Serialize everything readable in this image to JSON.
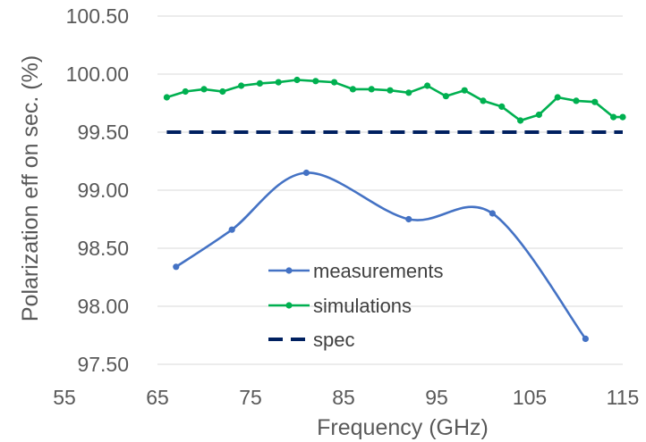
{
  "chart_data": {
    "type": "line",
    "xlabel": "Frequency (GHz)",
    "ylabel": "Polarization eff on sec. (%)",
    "xlim": [
      55,
      115
    ],
    "ylim": [
      97.5,
      100.5
    ],
    "x_ticks": [
      "55",
      "65",
      "75",
      "85",
      "95",
      "105",
      "115"
    ],
    "y_ticks": [
      "97.50",
      "98.00",
      "98.50",
      "99.00",
      "99.50",
      "100.00",
      "100.50"
    ],
    "grid": "horizontal",
    "legend": "center-bottom",
    "series": [
      {
        "name": "measurements",
        "color": "#4472c4",
        "smooth": true,
        "marker": "circle",
        "x": [
          67,
          73,
          81,
          92,
          101,
          111
        ],
        "y": [
          98.34,
          98.66,
          99.15,
          98.75,
          98.8,
          97.72
        ]
      },
      {
        "name": "simulations",
        "color": "#00b050",
        "smooth": false,
        "marker": "circle",
        "x": [
          66,
          68,
          70,
          72,
          74,
          76,
          78,
          80,
          82,
          84,
          86,
          88,
          90,
          92,
          94,
          96,
          98,
          100,
          102,
          104,
          106,
          108,
          110,
          112,
          114,
          115
        ],
        "y": [
          99.8,
          99.85,
          99.87,
          99.85,
          99.9,
          99.92,
          99.93,
          99.95,
          99.94,
          99.93,
          99.87,
          99.87,
          99.86,
          99.84,
          99.9,
          99.81,
          99.86,
          99.77,
          99.72,
          99.6,
          99.65,
          99.8,
          99.77,
          99.76,
          99.63,
          99.63
        ]
      },
      {
        "name": "spec",
        "color": "#002060",
        "dashed": true,
        "x": [
          66,
          115
        ],
        "y": [
          99.5,
          99.5
        ]
      }
    ]
  }
}
